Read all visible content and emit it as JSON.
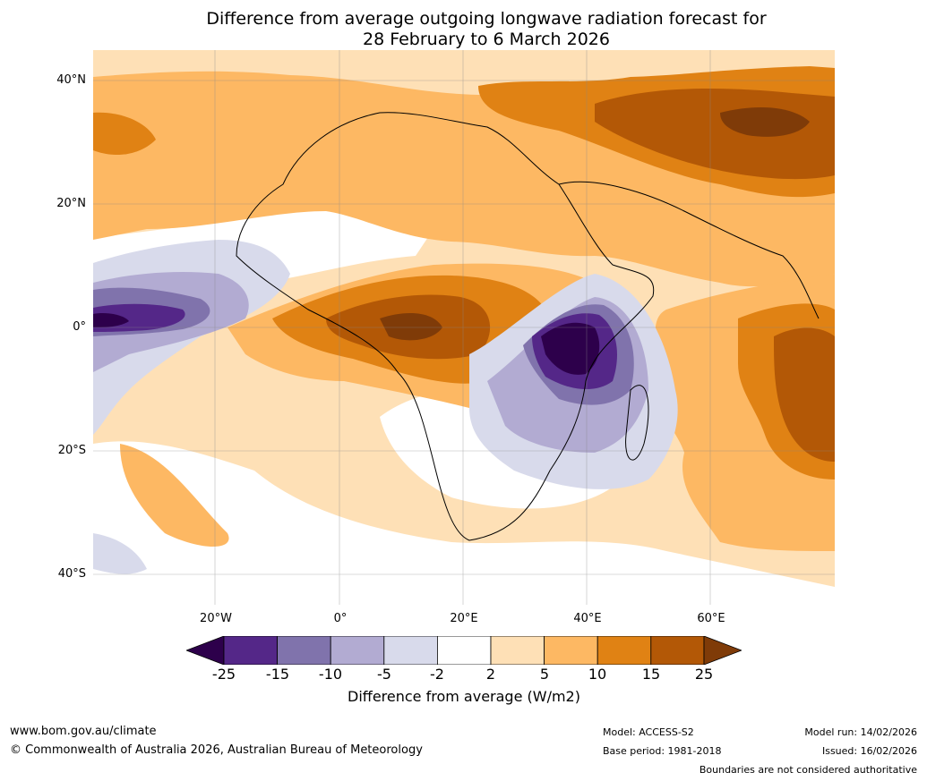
{
  "title": {
    "line1": "Difference from average outgoing longwave radiation forecast for",
    "line2": "28 February to 6 March 2026"
  },
  "map": {
    "lat_labels": [
      "40°N",
      "20°N",
      "0°",
      "20°S",
      "40°S"
    ],
    "lon_labels": [
      "20°W",
      "0°",
      "20°E",
      "40°E",
      "60°E"
    ],
    "palette": {
      "n25": "#2d004b",
      "n15": "#542788",
      "n10": "#8073ac",
      "n5": "#b2abd2",
      "n2": "#d8daeb",
      "zero": "#ffffff",
      "p2": "#fee0b6",
      "p5": "#fdb863",
      "p10": "#e08214",
      "p15": "#b35806",
      "p25": "#7f3b08"
    }
  },
  "colorbar": {
    "ticks": [
      "-25",
      "-15",
      "-10",
      "-5",
      "-2",
      "2",
      "5",
      "10",
      "15",
      "25"
    ],
    "label": "Difference from average (W/m2)"
  },
  "footer": {
    "website": "www.bom.gov.au/climate",
    "copyright": "© Commonwealth of Australia 2026, Australian Bureau of Meteorology",
    "model": "Model: ACCESS-S2",
    "base_period": "Base period: 1981-2018",
    "model_run": "Model run: 14/02/2026",
    "issued": "Issued: 16/02/2026",
    "disclaimer": "Boundaries are not considered authoritative"
  }
}
